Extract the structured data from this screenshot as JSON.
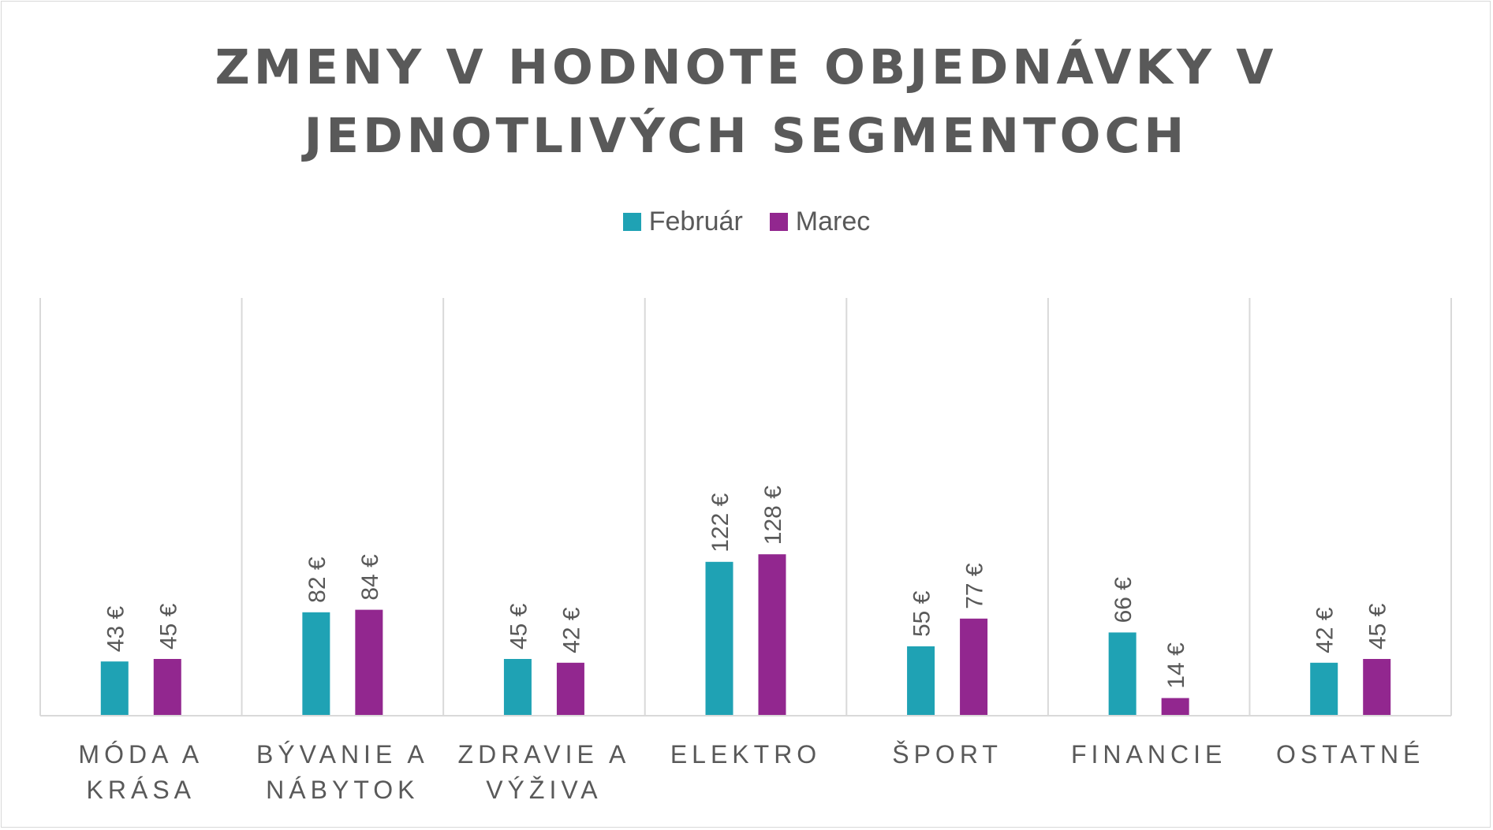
{
  "chart_data": {
    "type": "bar",
    "title": "ZMENY V HODNOTE OBJEDNÁVKY V JEDNOTLIVÝCH SEGMENTOCH",
    "title_lines": [
      "ZMENY V HODNOTE OBJEDNÁVKY V",
      "JEDNOTLIVÝCH SEGMENTOCH"
    ],
    "categories": [
      "MÓDA A KRÁSA",
      "BÝVANIE A NÁBYTOK",
      "ZDRAVIE A VÝŽIVA",
      "ELEKTRO",
      "ŠPORT",
      "FINANCIE",
      "OSTATNÉ"
    ],
    "category_lines": [
      [
        "MÓDA A",
        "KRÁSA"
      ],
      [
        "BÝVANIE A",
        "NÁBYTOK"
      ],
      [
        "ZDRAVIE A",
        "VÝŽIVA"
      ],
      [
        "ELEKTRO"
      ],
      [
        "ŠPORT"
      ],
      [
        "FINANCIE"
      ],
      [
        "OSTATNÉ"
      ]
    ],
    "series": [
      {
        "name": "Február",
        "color": "#1FA2B4",
        "values": [
          43,
          82,
          45,
          122,
          55,
          66,
          42
        ],
        "labels": [
          "43 €",
          "82 €",
          "45 €",
          "122 €",
          "55 €",
          "66 €",
          "42 €"
        ]
      },
      {
        "name": "Marec",
        "color": "#92278F",
        "values": [
          45,
          84,
          42,
          128,
          77,
          14,
          45
        ],
        "labels": [
          "45 €",
          "84 €",
          "42 €",
          "128 €",
          "77 €",
          "14 €",
          "45 €"
        ]
      }
    ],
    "unit": "€",
    "ylim": [
      0,
      140
    ],
    "legend_position": "top-center",
    "vertical_gridlines": true,
    "horizontal_gridlines": false,
    "colors": {
      "text": "#595959",
      "grid": "#d9d9d9"
    }
  }
}
